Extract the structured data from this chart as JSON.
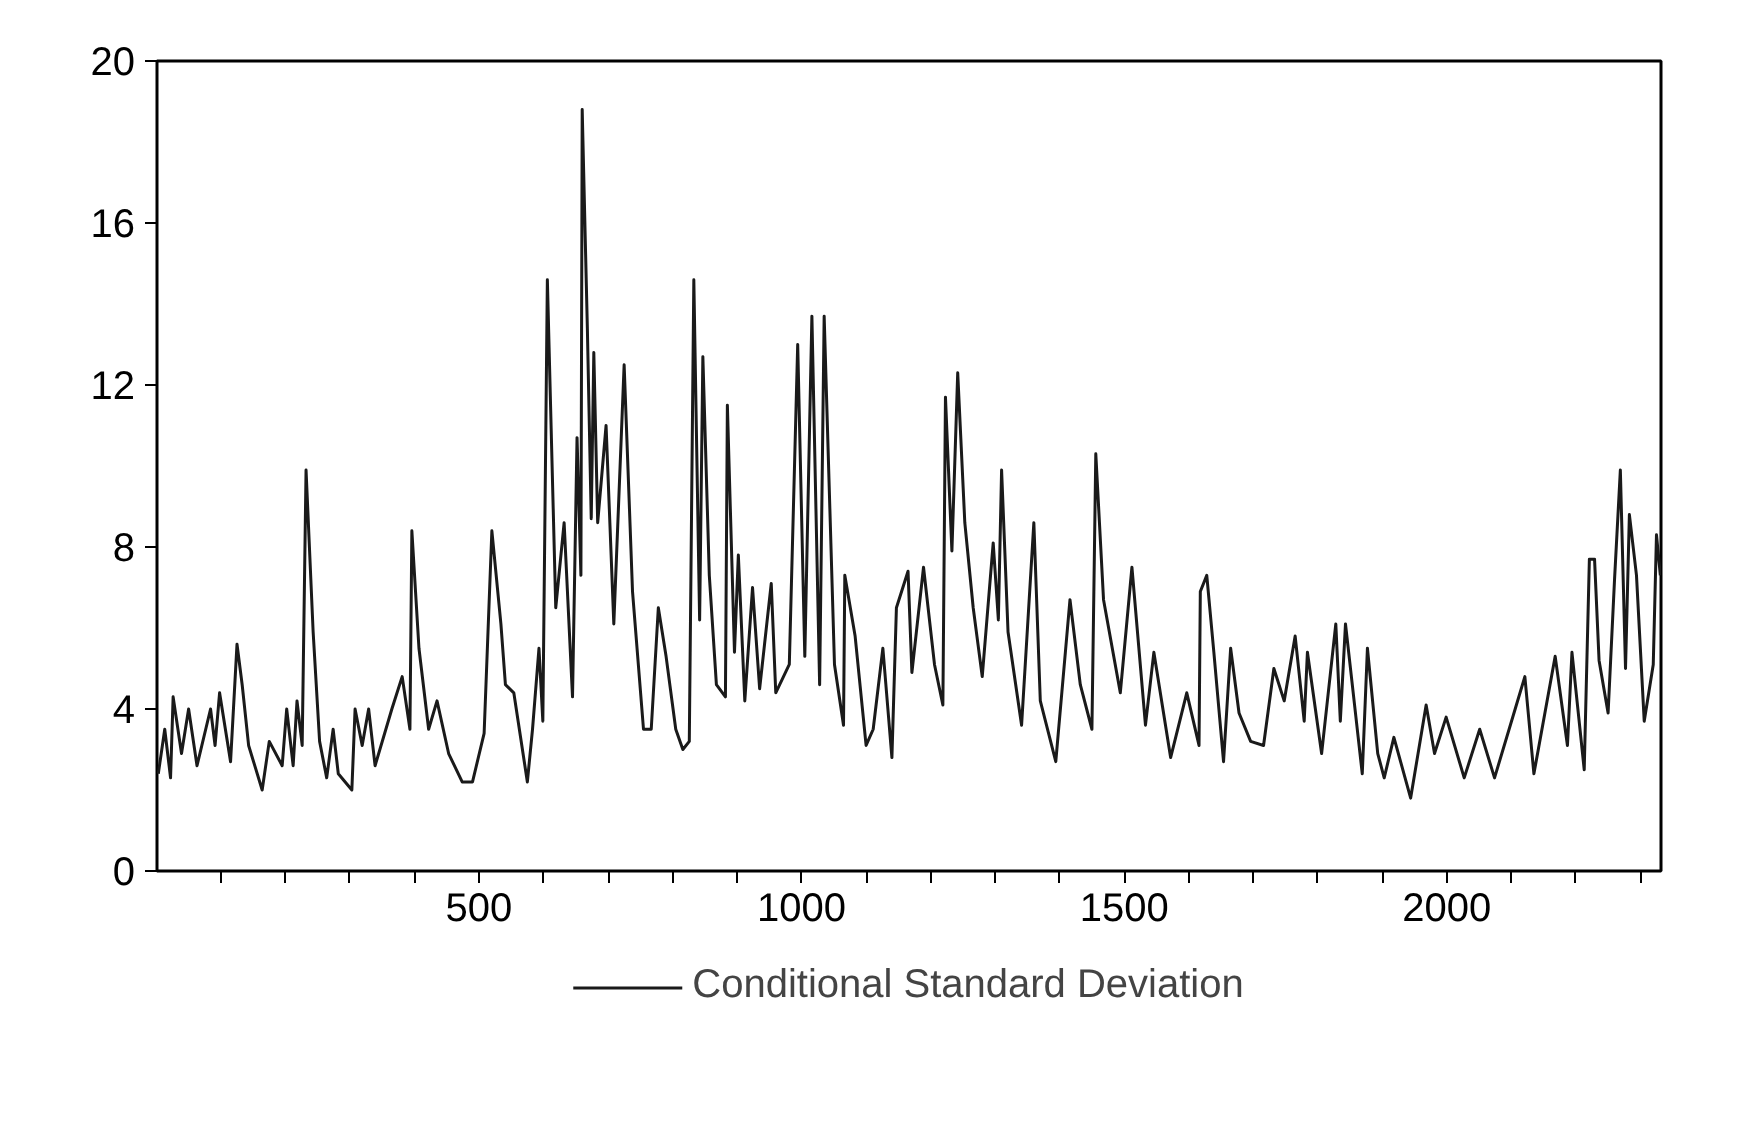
{
  "chart_data": {
    "type": "line",
    "xlim": [
      1,
      2332
    ],
    "ylim": [
      0,
      20
    ],
    "xticks": [
      {
        "value": 100,
        "label": null
      },
      {
        "value": 200,
        "label": null
      },
      {
        "value": 300,
        "label": null
      },
      {
        "value": 400,
        "label": null
      },
      500,
      {
        "value": 600,
        "label": null
      },
      {
        "value": 700,
        "label": null
      },
      {
        "value": 800,
        "label": null
      },
      {
        "value": 900,
        "label": null
      },
      1000,
      {
        "value": 1100,
        "label": null
      },
      {
        "value": 1200,
        "label": null
      },
      {
        "value": 1300,
        "label": null
      },
      {
        "value": 1400,
        "label": null
      },
      1500,
      {
        "value": 1600,
        "label": null
      },
      {
        "value": 1700,
        "label": null
      },
      {
        "value": 1800,
        "label": null
      },
      {
        "value": 1900,
        "label": null
      },
      2000,
      {
        "value": 2100,
        "label": null
      },
      {
        "value": 2200,
        "label": null
      },
      {
        "value": 2300,
        "label": null
      }
    ],
    "yticks": [
      0,
      4,
      8,
      12,
      16,
      20
    ],
    "grid": false,
    "legend": "bottom",
    "line_style": "solid",
    "series": [
      {
        "name": "Conditional Standard Deviation",
        "color": "#1a1a1a",
        "x": [
          3,
          13,
          22,
          26,
          39,
          50,
          63,
          84,
          91,
          98,
          115,
          125,
          133,
          143,
          164,
          175,
          195,
          202,
          212,
          218,
          226,
          232,
          243,
          253,
          264,
          274,
          282,
          303,
          308,
          319,
          329,
          339,
          365,
          381,
          393,
          396,
          407,
          422,
          435,
          453,
          474,
          490,
          508,
          520,
          534,
          541,
          554,
          575,
          583,
          593,
          599,
          606,
          619,
          632,
          645,
          652,
          658,
          660,
          668,
          674,
          678,
          684,
          697,
          709,
          725,
          738,
          755,
          767,
          778,
          790,
          805,
          816,
          826,
          833,
          842,
          847,
          857,
          868,
          882,
          885,
          896,
          902,
          912,
          924,
          935,
          953,
          960,
          981,
          994,
          1005,
          1016,
          1028,
          1035,
          1051,
          1065,
          1067,
          1083,
          1100,
          1111,
          1126,
          1140,
          1147,
          1165,
          1171,
          1189,
          1206,
          1219,
          1223,
          1233,
          1242,
          1253,
          1266,
          1280,
          1297,
          1305,
          1310,
          1320,
          1341,
          1360,
          1370,
          1394,
          1416,
          1432,
          1450,
          1456,
          1468,
          1494,
          1512,
          1533,
          1546,
          1572,
          1597,
          1616,
          1618,
          1628,
          1639,
          1654,
          1665,
          1678,
          1696,
          1716,
          1732,
          1748,
          1765,
          1779,
          1784,
          1806,
          1828,
          1835,
          1843,
          1869,
          1877,
          1893,
          1903,
          1918,
          1944,
          1968,
          1981,
          1999,
          2027,
          2051,
          2074,
          2106,
          2121,
          2135,
          2168,
          2187,
          2194,
          2213,
          2221,
          2229,
          2236,
          2250,
          2260,
          2269,
          2277,
          2283,
          2294,
          2306,
          2320,
          2325,
          2331
        ],
        "values": [
          2.4,
          3.5,
          2.3,
          4.3,
          2.9,
          4.0,
          2.6,
          4.0,
          3.1,
          4.4,
          2.7,
          5.6,
          4.6,
          3.1,
          2.0,
          3.2,
          2.6,
          4.0,
          2.6,
          4.2,
          3.1,
          9.9,
          5.9,
          3.2,
          2.3,
          3.5,
          2.4,
          2.0,
          4.0,
          3.1,
          4.0,
          2.6,
          4.0,
          4.8,
          3.5,
          8.4,
          5.5,
          3.5,
          4.2,
          2.9,
          2.2,
          2.2,
          3.4,
          8.4,
          6.1,
          4.6,
          4.4,
          2.2,
          3.5,
          5.5,
          3.7,
          14.6,
          6.5,
          8.6,
          4.3,
          10.7,
          7.3,
          18.8,
          13.4,
          8.7,
          12.8,
          8.6,
          11.0,
          6.1,
          12.5,
          6.9,
          3.5,
          3.5,
          6.5,
          5.3,
          3.5,
          3.0,
          3.2,
          14.6,
          6.2,
          12.7,
          7.3,
          4.6,
          4.3,
          11.5,
          5.4,
          7.8,
          4.2,
          7.0,
          4.5,
          7.1,
          4.4,
          5.1,
          13.0,
          5.3,
          13.7,
          4.6,
          13.7,
          5.1,
          3.6,
          7.3,
          5.8,
          3.1,
          3.5,
          5.5,
          2.8,
          6.5,
          7.4,
          4.9,
          7.5,
          5.1,
          4.1,
          11.7,
          7.9,
          12.3,
          8.6,
          6.5,
          4.8,
          8.1,
          6.2,
          9.9,
          5.9,
          3.6,
          8.6,
          4.2,
          2.7,
          6.7,
          4.6,
          3.5,
          10.3,
          6.7,
          4.4,
          7.5,
          3.6,
          5.4,
          2.8,
          4.4,
          3.1,
          6.9,
          7.3,
          5.4,
          2.7,
          5.5,
          3.9,
          3.2,
          3.1,
          5.0,
          4.2,
          5.8,
          3.7,
          5.4,
          2.9,
          6.1,
          3.7,
          6.1,
          2.4,
          5.5,
          2.9,
          2.3,
          3.3,
          1.8,
          4.1,
          2.9,
          3.8,
          2.3,
          3.5,
          2.3,
          4.0,
          4.8,
          2.4,
          5.3,
          3.1,
          5.4,
          2.5,
          7.7,
          7.7,
          5.2,
          3.9,
          7.2,
          9.9,
          5.0,
          8.8,
          7.3,
          3.7,
          5.1,
          8.3,
          7.3
        ]
      }
    ]
  }
}
